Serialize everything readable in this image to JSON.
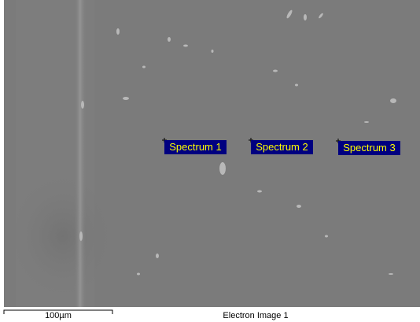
{
  "spectra": [
    {
      "label": "Spectrum 1"
    },
    {
      "label": "Spectrum 2"
    },
    {
      "label": "Spectrum 3"
    }
  ],
  "scale_bar": {
    "label": "100µm"
  },
  "caption": "Electron Image 1"
}
